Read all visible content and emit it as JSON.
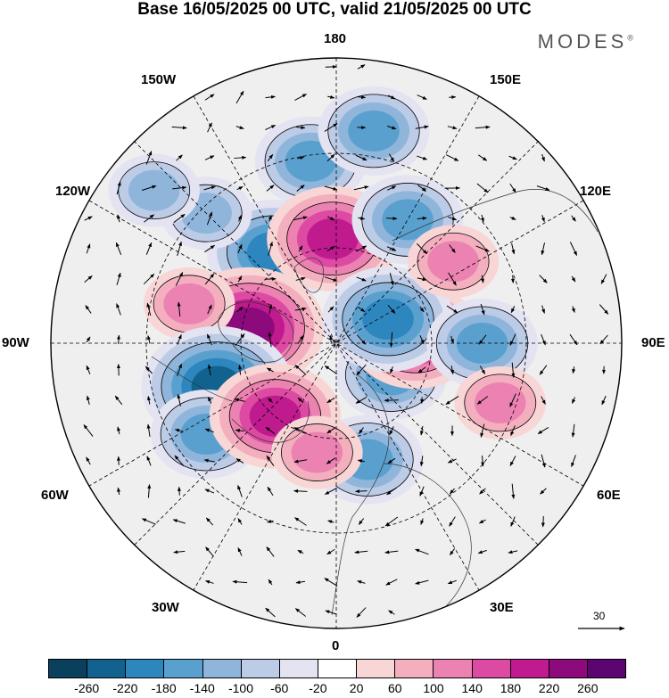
{
  "title": "Base 16/05/2025 00 UTC, valid 21/05/2025 00 UTC",
  "brand": "MODES",
  "brand_mark": "®",
  "longitude_labels": {
    "top": "180",
    "top_left": "150W",
    "top_right": "150E",
    "upper_left": "120W",
    "upper_right": "120E",
    "left": "90W",
    "right": "90E",
    "lower_left": "60W",
    "lower_right": "60E",
    "bottom_left": "30W",
    "bottom_right": "30E",
    "bottom": "0"
  },
  "vector_scale": {
    "value": "30"
  },
  "colorbar": {
    "colors": [
      "#0a3f5e",
      "#12628f",
      "#2d86be",
      "#5aa0cf",
      "#8fb5db",
      "#bccbe6",
      "#e3e3f2",
      "#ffffff",
      "#f8d6d6",
      "#f4afbf",
      "#ec82b1",
      "#dd4aa3",
      "#bf1b8f",
      "#8c0a7c",
      "#5c0570"
    ],
    "tick_labels": [
      "-260",
      "-220",
      "-180",
      "-140",
      "-100",
      "-60",
      "-20",
      "20",
      "60",
      "100",
      "140",
      "180",
      "220",
      "260"
    ]
  },
  "anomaly_blobs": [
    {
      "kind": "neg",
      "lon": -145,
      "colat": 35,
      "mag": 5
    },
    {
      "kind": "neg",
      "lon": -135,
      "colat": 58,
      "mag": 3
    },
    {
      "kind": "neg",
      "lon": -172,
      "colat": 58,
      "mag": 4
    },
    {
      "kind": "pos",
      "lon": -178,
      "colat": 33,
      "mag": 5
    },
    {
      "kind": "pos",
      "lon": -100,
      "colat": 28,
      "mag": 6
    },
    {
      "kind": "pos",
      "lon": -105,
      "colat": 48,
      "mag": 3
    },
    {
      "kind": "neg",
      "lon": -70,
      "colat": 40,
      "mag": 6
    },
    {
      "kind": "neg",
      "lon": -55,
      "colat": 50,
      "mag": 4
    },
    {
      "kind": "pos",
      "lon": -40,
      "colat": 30,
      "mag": 5
    },
    {
      "kind": "neg",
      "lon": 15,
      "colat": 38,
      "mag": 4
    },
    {
      "kind": "pos",
      "lon": -10,
      "colat": 35,
      "mag": 3
    },
    {
      "kind": "neg",
      "lon": 60,
      "colat": 20,
      "mag": 4
    },
    {
      "kind": "pos",
      "lon": 95,
      "colat": 25,
      "mag": 5
    },
    {
      "kind": "neg",
      "lon": 115,
      "colat": 18,
      "mag": 5
    },
    {
      "kind": "neg",
      "lon": 90,
      "colat": 46,
      "mag": 4
    },
    {
      "kind": "pos",
      "lon": 70,
      "colat": 55,
      "mag": 3
    },
    {
      "kind": "neg",
      "lon": 150,
      "colat": 45,
      "mag": 4
    },
    {
      "kind": "neg",
      "lon": 170,
      "colat": 68,
      "mag": 4
    },
    {
      "kind": "pos",
      "lon": 125,
      "colat": 45,
      "mag": 3
    },
    {
      "kind": "neg",
      "lon": -130,
      "colat": 75,
      "mag": 3
    }
  ]
}
